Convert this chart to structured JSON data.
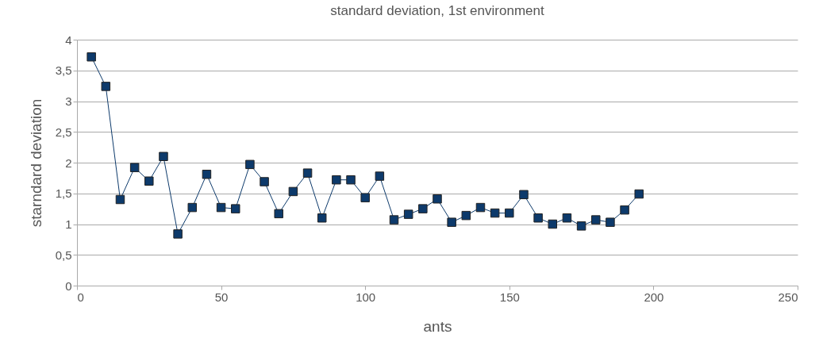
{
  "chart_data": {
    "type": "line",
    "title": "standard deviation, 1st environment",
    "xlabel": "ants",
    "ylabel": "starndard deviation",
    "x": [
      5,
      10,
      15,
      20,
      25,
      30,
      35,
      40,
      45,
      50,
      55,
      60,
      65,
      70,
      75,
      80,
      85,
      90,
      95,
      100,
      105,
      110,
      115,
      120,
      125,
      130,
      135,
      140,
      145,
      150,
      155,
      160,
      165,
      170,
      175,
      180,
      185,
      190,
      195
    ],
    "series": [
      {
        "color": "#0d3a6b",
        "values": [
          3.72,
          3.24,
          1.4,
          1.92,
          1.7,
          2.1,
          0.84,
          1.27,
          1.81,
          1.27,
          1.25,
          1.97,
          1.69,
          1.17,
          1.53,
          1.83,
          1.1,
          1.72,
          1.72,
          1.43,
          1.78,
          1.07,
          1.16,
          1.25,
          1.41,
          1.03,
          1.14,
          1.27,
          1.18,
          1.18,
          1.48,
          1.1,
          1.0,
          1.1,
          0.97,
          1.07,
          1.03,
          1.23,
          1.49
        ]
      }
    ],
    "xlim": [
      0,
      250
    ],
    "xticks": [
      0,
      50,
      100,
      150,
      200,
      250
    ],
    "ylim": [
      0,
      4
    ],
    "yticks": [
      0,
      {
        "value": 0.5,
        "label": "0,5"
      },
      1,
      {
        "value": 1.5,
        "label": "1,5"
      },
      2,
      {
        "value": 2.5,
        "label": "2,5"
      },
      3,
      {
        "value": 3.5,
        "label": "3,5"
      },
      4
    ],
    "grid": "y",
    "marker": "square",
    "line_style": "solid"
  }
}
